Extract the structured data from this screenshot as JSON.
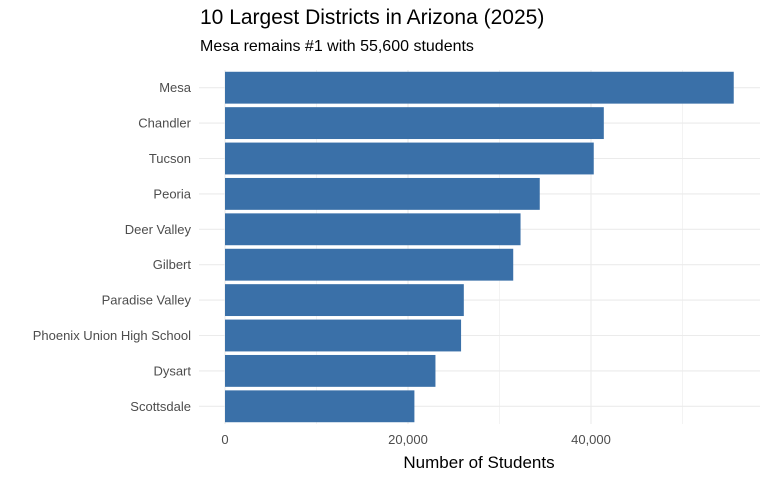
{
  "title": "10 Largest Districts in Arizona (2025)",
  "subtitle": "Mesa remains #1 with 55,600 students",
  "chart_data": {
    "type": "bar",
    "orientation": "horizontal",
    "categories": [
      "Mesa",
      "Chandler",
      "Tucson",
      "Peoria",
      "Deer Valley",
      "Gilbert",
      "Paradise Valley",
      "Phoenix Union High School",
      "Dysart",
      "Scottsdale"
    ],
    "values": [
      55600,
      41400,
      40300,
      34400,
      32300,
      31500,
      26100,
      25800,
      23000,
      20700
    ],
    "xlabel": "Number of Students",
    "ylabel": "",
    "xlim": [
      0,
      58000
    ],
    "x_ticks": [
      0,
      20000,
      40000
    ],
    "x_tick_labels": [
      "0",
      "20,000",
      "40,000"
    ],
    "bar_color": "#3a70a8",
    "grid_color": "#ebebeb",
    "grid": true,
    "legend": "none"
  }
}
